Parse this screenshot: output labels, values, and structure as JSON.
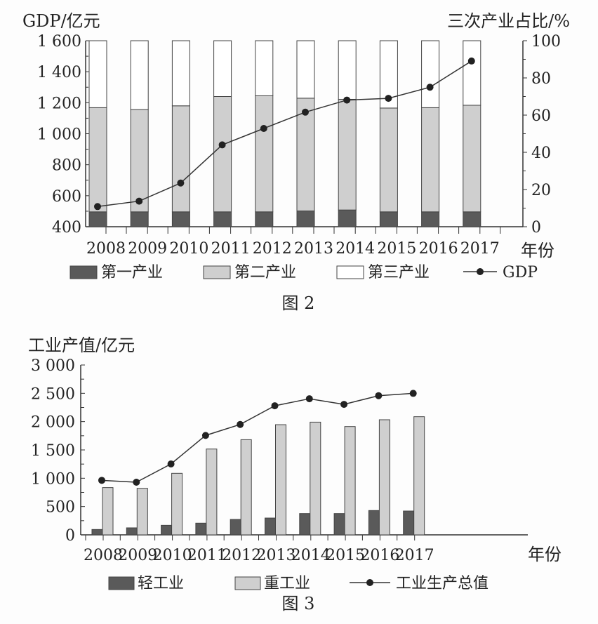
{
  "chart_data": [
    {
      "type": "bar+line",
      "caption": "图 2",
      "ylabel_left": "GDP/亿元",
      "ylabel_right": "三次产业占比/%",
      "xlabel": "年份",
      "categories": [
        "2008",
        "2009",
        "2010",
        "2011",
        "2012",
        "2013",
        "2014",
        "2015",
        "2016",
        "2017"
      ],
      "ylim_left": [
        400,
        1600
      ],
      "yticks_left": [
        "1 600",
        "1 400",
        "1 200",
        "1 000",
        "800",
        "600",
        "400"
      ],
      "ylim_right": [
        0,
        100
      ],
      "yticks_right": [
        "100",
        "80",
        "60",
        "40",
        "20",
        "0"
      ],
      "series": [
        {
          "name": "第一产业",
          "type": "stacked-bar",
          "axis": "right",
          "color": "#5a5a5a",
          "values": [
            8,
            8,
            8,
            8,
            8,
            8.5,
            9,
            8,
            8,
            8
          ]
        },
        {
          "name": "第二产业",
          "type": "stacked-bar",
          "axis": "right",
          "color": "#cfcfcf",
          "values": [
            56,
            55,
            57,
            62,
            62.4,
            60.6,
            59.5,
            55.8,
            56,
            57.3
          ]
        },
        {
          "name": "第三产业",
          "type": "stacked-bar",
          "axis": "right",
          "color": "#ffffff",
          "values": [
            36,
            37,
            35,
            30,
            29.6,
            30.9,
            31.5,
            36.2,
            36,
            34.7
          ]
        },
        {
          "name": "GDP",
          "type": "line",
          "axis": "left",
          "color": "#222222",
          "values": [
            530,
            565,
            682,
            928,
            1034,
            1139,
            1217,
            1228,
            1300,
            1469
          ]
        }
      ],
      "legend_position": "bottom"
    },
    {
      "type": "bar+line",
      "caption": "图 3",
      "ylabel": "工业产值/亿元",
      "xlabel": "年份",
      "categories": [
        "2008",
        "2009",
        "2010",
        "2011",
        "2012",
        "2013",
        "2014",
        "2015",
        "2016",
        "2017"
      ],
      "ylim": [
        0,
        3000
      ],
      "yticks": [
        "3 000",
        "2 500",
        "2 000",
        "1 500",
        "1 000",
        "500",
        "0"
      ],
      "series": [
        {
          "name": "轻工业",
          "type": "bar",
          "color": "#5a5a5a",
          "values": [
            95,
            124,
            169,
            207,
            273,
            297,
            376,
            376,
            430,
            421
          ]
        },
        {
          "name": "重工业",
          "type": "bar",
          "color": "#cfcfcf",
          "values": [
            835,
            822,
            1087,
            1516,
            1681,
            1946,
            1991,
            1913,
            2033,
            2087
          ]
        },
        {
          "name": "工业生产总值",
          "type": "line",
          "color": "#222222",
          "values": [
            963,
            930,
            1252,
            1756,
            1950,
            2280,
            2404,
            2305,
            2458,
            2499
          ]
        }
      ],
      "legend_position": "bottom"
    }
  ]
}
